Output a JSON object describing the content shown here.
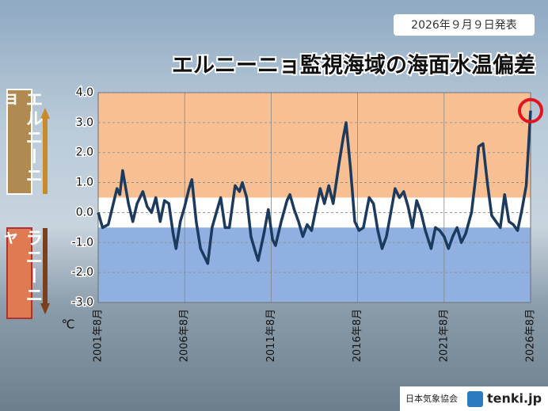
{
  "chart_data": {
    "type": "line",
    "title": "エルニーニョ監視海域の海面水温偏差",
    "date_label": "2026年９月９日発表",
    "elnino_label": "エルニーニョ",
    "lanina_label": "ラニーニャ",
    "unit_label": "℃",
    "footer_org": "日本気象協会",
    "footer_site": "tenki.jp",
    "elnino_threshold": 0.5,
    "lanina_threshold": -0.5,
    "elnino_color": "#f7bf92",
    "neutral_color": "#ffffff",
    "lanina_color": "#8fb0e0",
    "grid": true,
    "xlim": [
      "2001-08",
      "2026-08"
    ],
    "xticks": [
      {
        "value": "2001-08",
        "label": "2001年8月"
      },
      {
        "value": "2006-08",
        "label": "2006年8月"
      },
      {
        "value": "2011-08",
        "label": "2011年8月"
      },
      {
        "value": "2016-08",
        "label": "2016年8月"
      },
      {
        "value": "2021-08",
        "label": "2021年8月"
      },
      {
        "value": "2026-08",
        "label": "2026年8月"
      }
    ],
    "ylim": [
      -3,
      4
    ],
    "yticks": [
      {
        "value": -3,
        "label": "-3.0"
      },
      {
        "value": -2,
        "label": "-2.0"
      },
      {
        "value": -1,
        "label": "-1.0"
      },
      {
        "value": 0,
        "label": "0.0"
      },
      {
        "value": 1,
        "label": "1.0"
      },
      {
        "value": 2,
        "label": "2.0"
      },
      {
        "value": 3,
        "label": "3.0"
      },
      {
        "value": 4,
        "label": "4.0"
      }
    ],
    "x": [
      "2001-08",
      "2001-11",
      "2002-03",
      "2002-06",
      "2002-09",
      "2002-11",
      "2003-01",
      "2003-05",
      "2003-08",
      "2003-11",
      "2004-03",
      "2004-06",
      "2004-09",
      "2004-12",
      "2005-03",
      "2005-06",
      "2005-09",
      "2005-12",
      "2006-02",
      "2006-05",
      "2006-08",
      "2006-11",
      "2007-01",
      "2007-04",
      "2007-07",
      "2007-10",
      "2007-12",
      "2008-03",
      "2008-06",
      "2008-09",
      "2008-12",
      "2009-03",
      "2009-07",
      "2009-10",
      "2009-12",
      "2010-03",
      "2010-06",
      "2010-09",
      "2010-11",
      "2011-03",
      "2011-06",
      "2011-09",
      "2011-11",
      "2012-03",
      "2012-07",
      "2012-09",
      "2012-12",
      "2013-03",
      "2013-06",
      "2013-09",
      "2013-12",
      "2014-03",
      "2014-06",
      "2014-09",
      "2014-12",
      "2015-03",
      "2015-07",
      "2015-10",
      "2015-12",
      "2016-03",
      "2016-06",
      "2016-09",
      "2016-12",
      "2017-04",
      "2017-07",
      "2017-10",
      "2018-01",
      "2018-04",
      "2018-07",
      "2018-10",
      "2019-01",
      "2019-04",
      "2019-07",
      "2019-10",
      "2020-01",
      "2020-04",
      "2020-07",
      "2020-11",
      "2021-02",
      "2021-05",
      "2021-08",
      "2021-11",
      "2022-02",
      "2022-05",
      "2022-08",
      "2022-11",
      "2023-03",
      "2023-06",
      "2023-08",
      "2023-11",
      "2024-02",
      "2024-05",
      "2024-08",
      "2024-11",
      "2025-02",
      "2025-05",
      "2025-08",
      "2025-11",
      "2026-02",
      "2026-05",
      "2026-08"
    ],
    "series": [
      {
        "name": "海面水温偏差",
        "color": "#1c3a5e",
        "values": [
          0.0,
          -0.5,
          -0.4,
          0.2,
          0.8,
          0.6,
          1.4,
          0.3,
          -0.3,
          0.3,
          0.7,
          0.2,
          0.0,
          0.5,
          -0.3,
          0.4,
          0.3,
          -0.7,
          -1.2,
          -0.3,
          0.2,
          0.8,
          1.1,
          -0.3,
          -1.2,
          -1.5,
          -1.7,
          -0.5,
          0.0,
          0.5,
          -0.5,
          -0.5,
          0.9,
          0.7,
          1.0,
          0.5,
          -0.8,
          -1.3,
          -1.6,
          -0.7,
          0.1,
          -0.9,
          -1.1,
          -0.3,
          0.4,
          0.6,
          0.1,
          -0.3,
          -0.8,
          -0.4,
          -0.6,
          0.1,
          0.8,
          0.3,
          0.9,
          0.3,
          1.6,
          2.5,
          3.0,
          1.5,
          -0.3,
          -0.6,
          -0.5,
          0.5,
          0.3,
          -0.6,
          -1.2,
          -0.8,
          0.0,
          0.8,
          0.5,
          0.7,
          0.2,
          -0.5,
          0.4,
          0.0,
          -0.6,
          -1.2,
          -0.5,
          -0.6,
          -0.8,
          -1.2,
          -0.8,
          -0.5,
          -1.0,
          -0.7,
          0.0,
          1.2,
          2.2,
          2.3,
          1.0,
          -0.1,
          -0.3,
          -0.5,
          0.6,
          -0.3,
          -0.4,
          -0.6,
          0.1,
          0.9,
          3.4
        ]
      }
    ]
  }
}
